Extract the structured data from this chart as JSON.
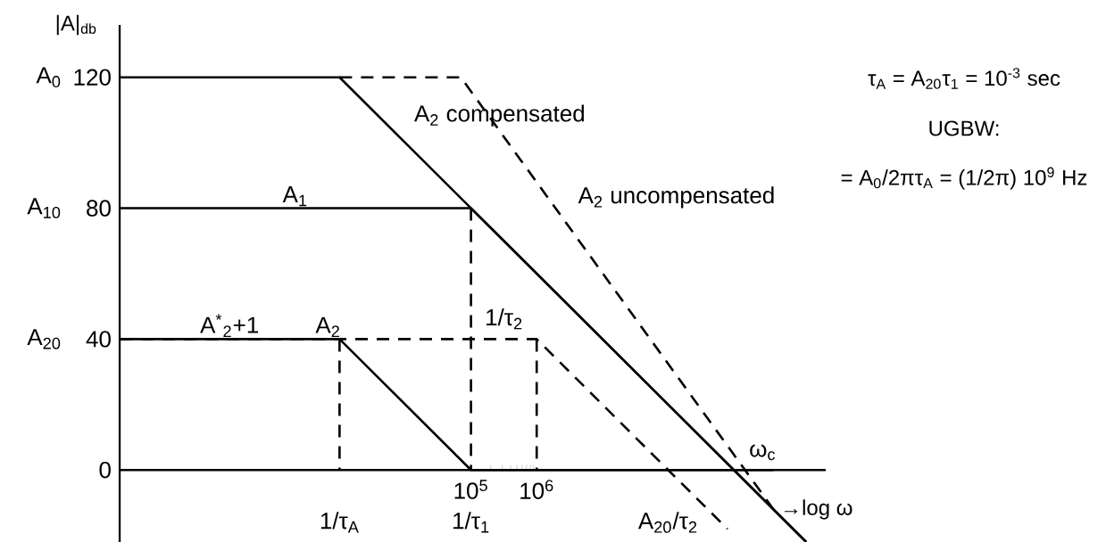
{
  "chart_data": {
    "type": "line",
    "xlabel": "→log ω",
    "ylabel": "|A|$_{db}$",
    "log": "x",
    "xlim": [
      0.45,
      25000000000.0
    ],
    "ylim": [
      -22,
      136
    ],
    "xticks": [
      {
        "value": 100000,
        "label": "10$^{5}$"
      },
      {
        "value": 1000000,
        "label": "10$^{6}$"
      }
    ],
    "yticks": [
      0,
      40,
      80,
      120
    ],
    "series": [
      {
        "color": "#000000",
        "line_style": "solid",
        "x": [
          0.45,
          1000,
          12600000000.0
        ],
        "values": [
          120,
          120,
          -22
        ]
      },
      {
        "name": "A$_{1}$",
        "color": "#000000",
        "line_style": "solid",
        "x": [
          0.45,
          100000,
          12600000000.0
        ],
        "values": [
          80,
          80,
          -22
        ]
      },
      {
        "name": "A$^{*}$$_{2}$+1",
        "color": "#000000",
        "line_style": "solid",
        "x": [
          0.45,
          1000,
          100000,
          4000000000.0
        ],
        "values": [
          40,
          40,
          0,
          0
        ]
      },
      {
        "name": "A$_{2}$",
        "color": "#000000",
        "line_style": "dashed",
        "x": [
          0.45,
          1000000,
          100000000.0,
          800000000.0
        ],
        "values": [
          40,
          40,
          0,
          -18
        ]
      },
      {
        "color": "#000000",
        "line_style": "dashed",
        "x": [
          1000,
          70000,
          4000000000.0
        ],
        "values": [
          120,
          120,
          -12
        ]
      },
      {
        "color": "#000000",
        "line_style": "dashed",
        "x": [
          1000,
          1000
        ],
        "values": [
          40,
          0
        ]
      },
      {
        "color": "#000000",
        "line_style": "dashed",
        "x": [
          100000,
          100000
        ],
        "values": [
          80,
          0
        ]
      },
      {
        "color": "#000000",
        "line_style": "dashed",
        "x": [
          1000000,
          1000000
        ],
        "values": [
          40,
          0
        ]
      }
    ],
    "annotations": [
      {
        "text": "A$_{2}$ compensated",
        "x": 8000,
        "y": 102
      },
      {
        "text": "A$_{2}$ uncompensated",
        "x": 2500000,
        "y": 77
      },
      {
        "text": "1/τ$_{2}$",
        "x": 1000000,
        "y": 40
      },
      {
        "text": "ω$_{c}$",
        "x": 1000000000.0,
        "y": 0
      },
      {
        "text": "1/τ$_{A}$",
        "x": 1000,
        "y": 0
      },
      {
        "text": "1/τ$_{1}$",
        "x": 100000,
        "y": 0
      },
      {
        "text": "A$_{20}$/τ$_{2}$",
        "x": 100000000.0,
        "y": 0
      },
      {
        "text": "A$_{0}$",
        "x": 0.45,
        "y": 120
      },
      {
        "text": "A$_{10}$",
        "x": 0.45,
        "y": 80
      },
      {
        "text": "A$_{20}$",
        "x": 0.45,
        "y": 40
      },
      "τ$_{A}$ = A$_{20}$τ$_{1}$ = 10$^{-3}$ sec",
      "UGBW:",
      "= A$_{0}$/2πτ$_{A}$ = (1/2π) 10$^{9}$ Hz"
    ]
  }
}
